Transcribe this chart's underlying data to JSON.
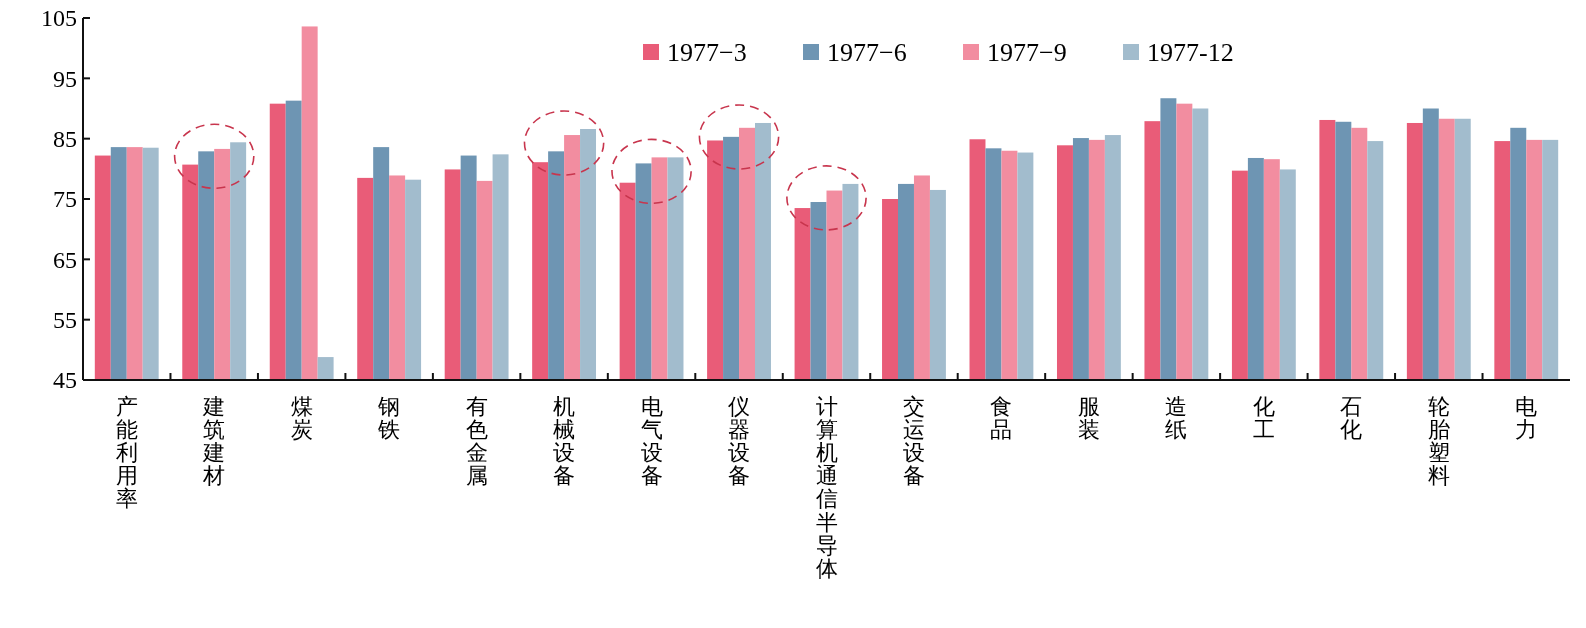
{
  "chart_data": {
    "type": "bar",
    "categories": [
      "产能利用率",
      "建筑建材",
      "煤炭",
      "钢铁",
      "有色金属",
      "机械设备",
      "电气设备",
      "仪器设备",
      "计算机通信半导体",
      "交运设备",
      "食品",
      "服装",
      "造纸",
      "化工",
      "石化",
      "轮胎塑料",
      "电力"
    ],
    "series": [
      {
        "name": "1977−3",
        "color": "#e95c78",
        "values": [
          82.2,
          80.7,
          90.8,
          78.5,
          79.9,
          81.1,
          77.7,
          84.7,
          73.5,
          75.0,
          84.9,
          83.9,
          87.9,
          79.7,
          88.1,
          87.6,
          84.6
        ]
      },
      {
        "name": "1977−6",
        "color": "#6e95b3",
        "values": [
          83.6,
          82.9,
          91.3,
          83.6,
          82.2,
          82.9,
          80.9,
          85.3,
          74.5,
          77.5,
          83.4,
          85.1,
          91.7,
          81.8,
          87.8,
          90.0,
          86.8
        ]
      },
      {
        "name": "1977−9",
        "color": "#f28da0",
        "values": [
          83.6,
          83.3,
          103.6,
          78.9,
          78.0,
          85.6,
          81.9,
          86.8,
          76.4,
          78.9,
          83.0,
          84.8,
          90.8,
          81.6,
          86.8,
          88.3,
          84.8
        ]
      },
      {
        "name": "1977-12",
        "color": "#a2bccd",
        "values": [
          83.5,
          84.4,
          48.8,
          78.2,
          82.4,
          86.6,
          81.9,
          87.6,
          77.5,
          76.5,
          82.7,
          85.6,
          90.0,
          79.9,
          84.6,
          88.3,
          84.8
        ]
      }
    ],
    "ylim": [
      45,
      105
    ],
    "yticks": [
      45,
      55,
      65,
      75,
      85,
      95,
      105
    ],
    "grid": false,
    "legend": "top"
  }
}
